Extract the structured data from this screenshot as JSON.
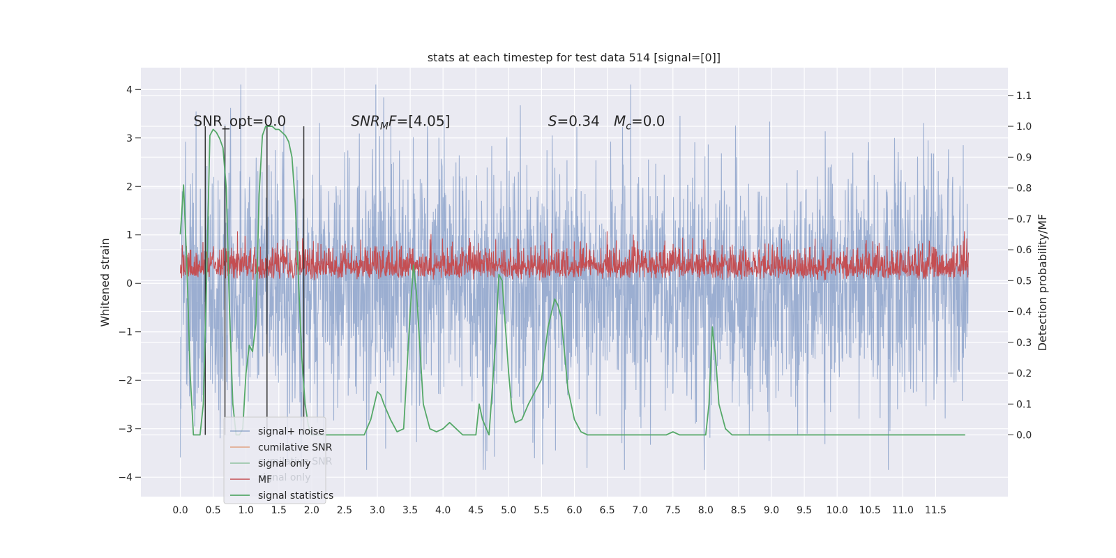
{
  "chart_data": {
    "type": "line",
    "title": "stats at each timestep for test data 514 [signal=[0]]",
    "xlabel": "",
    "ylabel": "Whitened strain",
    "y2label": "Detection probability/MF",
    "xlim": [
      -0.6,
      12.6
    ],
    "ylim": [
      -4.4,
      4.45
    ],
    "y2lim": [
      -0.2,
      1.19
    ],
    "x_ticks": [
      0.0,
      0.5,
      1.0,
      1.5,
      2.0,
      2.5,
      3.0,
      3.5,
      4.0,
      4.5,
      5.0,
      5.5,
      6.0,
      6.5,
      7.0,
      7.5,
      8.0,
      8.5,
      9.0,
      9.5,
      10.0,
      10.5,
      11.0,
      11.5
    ],
    "x_tick_labels": [
      "0.0",
      "0.5",
      "1.0",
      "1.5",
      "2.0",
      "2.5",
      "3.0",
      "3.5",
      "4.0",
      "4.5",
      "5.0",
      "5.5",
      "6.0",
      "6.5",
      "7.0",
      "7.5",
      "8.0",
      "8.5",
      "9.0",
      "9.5",
      "10.0",
      "10.5",
      "11.0",
      "11.5"
    ],
    "y_ticks": [
      -4,
      -3,
      -2,
      -1,
      0,
      1,
      2,
      3,
      4
    ],
    "y_tick_labels": [
      "−4",
      "−3",
      "−2",
      "−1",
      "0",
      "1",
      "2",
      "3",
      "4"
    ],
    "y2_ticks": [
      0.0,
      0.1,
      0.2,
      0.3,
      0.4,
      0.5,
      0.6,
      0.7,
      0.8,
      0.9,
      1.0,
      1.1
    ],
    "y2_tick_labels": [
      "0.0",
      "0.1",
      "0.2",
      "0.3",
      "0.4",
      "0.5",
      "0.6",
      "0.7",
      "0.8",
      "0.9",
      "1.0",
      "1.1"
    ],
    "grid": true,
    "legend_placement": "lower-left",
    "noise_series": {
      "name": "signal+ noise",
      "x_range": [
        0.0,
        12.0
      ],
      "sample_count": 2400,
      "typical_range": [
        -2.5,
        2.6
      ],
      "extremes": [
        -3.85,
        4.1
      ],
      "color": "#4c72b0"
    },
    "mf_series": {
      "name": "MF",
      "axis": "right",
      "x_range": [
        0.0,
        12.0
      ],
      "sample_count": 2400,
      "baseline": 0.5,
      "typical_range": [
        0.5,
        0.63
      ],
      "extremes": [
        0.5,
        0.66
      ],
      "color": "#c44e52"
    },
    "signal_statistics": {
      "name": "signal statistics",
      "axis": "right",
      "color": "#55a868",
      "x": [
        0.0,
        0.05,
        0.1,
        0.15,
        0.2,
        0.25,
        0.3,
        0.35,
        0.4,
        0.45,
        0.5,
        0.55,
        0.6,
        0.65,
        0.7,
        0.75,
        0.8,
        0.85,
        0.9,
        0.95,
        1.0,
        1.05,
        1.1,
        1.15,
        1.2,
        1.25,
        1.3,
        1.35,
        1.4,
        1.45,
        1.5,
        1.55,
        1.6,
        1.65,
        1.7,
        1.75,
        1.8,
        1.85,
        1.9,
        1.95,
        2.0,
        2.05,
        2.1,
        2.2,
        2.4,
        2.6,
        2.8,
        2.9,
        3.0,
        3.05,
        3.1,
        3.2,
        3.3,
        3.4,
        3.5,
        3.55,
        3.6,
        3.7,
        3.8,
        3.9,
        4.0,
        4.1,
        4.2,
        4.3,
        4.4,
        4.5,
        4.55,
        4.6,
        4.7,
        4.8,
        4.85,
        4.9,
        5.0,
        5.05,
        5.1,
        5.2,
        5.3,
        5.4,
        5.5,
        5.6,
        5.7,
        5.75,
        5.8,
        5.9,
        6.0,
        6.1,
        6.2,
        6.4,
        6.8,
        7.0,
        7.2,
        7.4,
        7.5,
        7.6,
        7.8,
        7.9,
        8.0,
        8.05,
        8.1,
        8.15,
        8.2,
        8.3,
        8.4,
        8.6,
        9.0,
        9.5,
        10.0,
        10.5,
        11.0,
        11.5,
        11.95
      ],
      "y": [
        0.65,
        0.81,
        0.55,
        0.2,
        0.0,
        0.0,
        0.0,
        0.1,
        0.5,
        0.97,
        0.99,
        0.98,
        0.96,
        0.93,
        0.8,
        0.4,
        0.1,
        0.0,
        0.0,
        0.02,
        0.2,
        0.29,
        0.27,
        0.36,
        0.78,
        0.97,
        1.0,
        1.0,
        1.0,
        0.99,
        0.99,
        0.98,
        0.97,
        0.95,
        0.9,
        0.75,
        0.5,
        0.25,
        0.1,
        0.03,
        0.0,
        0.0,
        0.0,
        0.0,
        0.0,
        0.0,
        0.0,
        0.05,
        0.14,
        0.13,
        0.1,
        0.05,
        0.01,
        0.02,
        0.4,
        0.55,
        0.45,
        0.1,
        0.02,
        0.01,
        0.02,
        0.04,
        0.02,
        0.0,
        0.0,
        0.0,
        0.1,
        0.05,
        0.0,
        0.3,
        0.52,
        0.5,
        0.2,
        0.08,
        0.04,
        0.05,
        0.1,
        0.14,
        0.18,
        0.35,
        0.44,
        0.42,
        0.38,
        0.15,
        0.05,
        0.01,
        0.0,
        0.0,
        0.0,
        0.0,
        0.0,
        0.0,
        0.01,
        0.0,
        0.0,
        0.0,
        0.0,
        0.1,
        0.35,
        0.25,
        0.1,
        0.02,
        0.0,
        0.0,
        0.0,
        0.0,
        0.0,
        0.0,
        0.0,
        0.0,
        0.0
      ]
    },
    "event_markers": {
      "color": "#333333",
      "x": [
        0.38,
        0.68,
        1.32,
        1.88
      ],
      "y_range_right": [
        0.0,
        1.0
      ]
    },
    "annotations": [
      {
        "id": "snr-opt",
        "x": 0.2,
        "y": 3.25,
        "prefix": "SNR_opt=",
        "value": "0.0"
      },
      {
        "id": "snr-mf",
        "x": 2.6,
        "y": 3.25,
        "symbol": "SNR",
        "subscript": "M",
        "symbol2": "F",
        "value": "=[4.05]"
      },
      {
        "id": "s-stat",
        "x": 5.6,
        "y": 3.25,
        "symbol": "S",
        "value": "=0.34"
      },
      {
        "id": "mc-stat",
        "x": 6.6,
        "y": 3.25,
        "symbol": "M",
        "subscript": "c",
        "value": "=0.0"
      }
    ],
    "legend": [
      {
        "label": "signal+ noise",
        "color": "#4c72b0"
      },
      {
        "label": "cumilative SNR",
        "color": "#dd8452"
      },
      {
        "label": "signal only",
        "color": "#55a868"
      },
      {
        "label": "MF",
        "color": "#c44e52"
      },
      {
        "label": "signal statistics",
        "color": "#55a868"
      }
    ],
    "legend_ghost": [
      {
        "label": "cumilative SNR"
      },
      {
        "label": "signal only"
      }
    ],
    "colors": {
      "background": "#eaeaf2",
      "grid": "#ffffff",
      "noise": "#4c72b0",
      "mf": "#c44e52",
      "stat": "#55a868"
    }
  }
}
